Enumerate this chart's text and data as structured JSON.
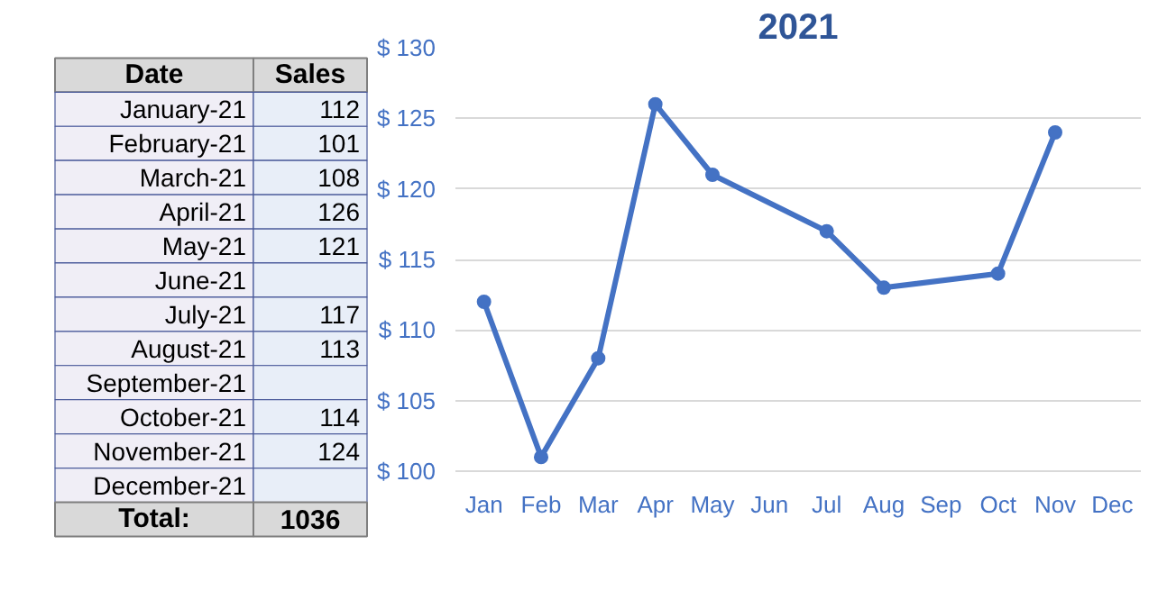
{
  "chart_data": [
    {
      "type": "other",
      "categories": [
        "January-21",
        "February-21",
        "March-21",
        "April-21",
        "May-21",
        "June-21",
        "July-21",
        "August-21",
        "September-21",
        "October-21",
        "November-21",
        "December-21"
      ],
      "values": [
        112,
        101,
        108,
        126,
        121,
        null,
        117,
        113,
        null,
        114,
        124,
        null
      ],
      "annotations": [
        "Date",
        "Sales",
        "Total:",
        "1036"
      ],
      "data_labels": true
    },
    {
      "type": "line",
      "title": "2021",
      "categories": [
        "Jan",
        "Feb",
        "Mar",
        "Apr",
        "May",
        "Jun",
        "Jul",
        "Aug",
        "Sep",
        "Oct",
        "Nov",
        "Dec"
      ],
      "series": [
        {
          "color": "#4472c4",
          "values": [
            112,
            101,
            108,
            126,
            121,
            null,
            117,
            113,
            null,
            114,
            124,
            null
          ]
        }
      ],
      "ylim": [
        100,
        130
      ],
      "yticks": [
        {
          "value": 100,
          "label": "$ 100"
        },
        {
          "value": 105,
          "label": "$ 105"
        },
        {
          "value": 110,
          "label": "$ 110"
        },
        {
          "value": 115,
          "label": "$ 115"
        },
        {
          "value": 120,
          "label": "$ 120"
        },
        {
          "value": 125,
          "label": "$ 125"
        },
        {
          "value": 130,
          "label": "$ 130"
        }
      ],
      "grid": "y",
      "marker": "circle",
      "line_style": "solid"
    }
  ]
}
